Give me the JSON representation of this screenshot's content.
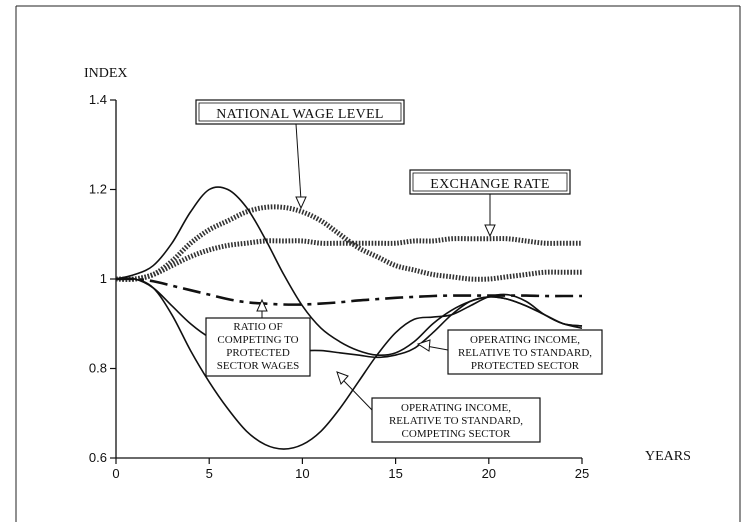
{
  "chart_data": {
    "type": "line",
    "title": "",
    "ylabel": "INDEX",
    "xlabel": "YEARS",
    "xlim": [
      0,
      25
    ],
    "ylim": [
      0.6,
      1.4
    ],
    "xticks": [
      0,
      5,
      10,
      15,
      20,
      25
    ],
    "yticks": [
      0.6,
      0.8,
      1.0,
      1.2,
      1.4
    ],
    "xtick_labels": [
      "0",
      "5",
      "10",
      "15",
      "20",
      "25"
    ],
    "ytick_labels": [
      "0.6",
      "0.8",
      "1",
      "1.2",
      "1.4"
    ],
    "grid": false,
    "series": [
      {
        "name": "NATIONAL WAGE LEVEL",
        "style": "dotted-thick",
        "x": [
          0,
          1,
          2,
          3,
          4,
          5,
          6,
          7,
          8,
          9,
          10,
          11,
          12,
          13,
          14,
          15,
          16,
          17,
          18,
          19,
          20,
          21,
          22,
          23,
          24,
          25
        ],
        "y": [
          1.0,
          1.0,
          1.01,
          1.04,
          1.08,
          1.11,
          1.13,
          1.15,
          1.16,
          1.16,
          1.15,
          1.13,
          1.1,
          1.07,
          1.05,
          1.03,
          1.02,
          1.01,
          1.005,
          1.0,
          1.0,
          1.005,
          1.01,
          1.015,
          1.015,
          1.015
        ]
      },
      {
        "name": "EXCHANGE RATE",
        "style": "dotted-thick",
        "x": [
          0,
          1,
          2,
          3,
          4,
          5,
          6,
          7,
          8,
          9,
          10,
          11,
          12,
          13,
          14,
          15,
          16,
          17,
          18,
          19,
          20,
          21,
          22,
          23,
          24,
          25
        ],
        "y": [
          1.0,
          1.0,
          1.01,
          1.03,
          1.05,
          1.065,
          1.075,
          1.08,
          1.085,
          1.085,
          1.085,
          1.08,
          1.08,
          1.08,
          1.08,
          1.08,
          1.085,
          1.085,
          1.09,
          1.09,
          1.09,
          1.09,
          1.085,
          1.08,
          1.08,
          1.08
        ]
      },
      {
        "name": "RATIO OF COMPETING TO PROTECTED SECTOR WAGES",
        "style": "dash-dot",
        "x": [
          0,
          1,
          2,
          3,
          4,
          5,
          6,
          7,
          8,
          9,
          10,
          11,
          12,
          13,
          14,
          15,
          16,
          17,
          18,
          19,
          20,
          21,
          22,
          23,
          24,
          25
        ],
        "y": [
          1.0,
          1.0,
          0.995,
          0.985,
          0.975,
          0.965,
          0.955,
          0.948,
          0.945,
          0.943,
          0.943,
          0.945,
          0.948,
          0.952,
          0.955,
          0.958,
          0.96,
          0.962,
          0.963,
          0.963,
          0.963,
          0.963,
          0.963,
          0.962,
          0.962,
          0.962
        ]
      },
      {
        "name": "OPERATING INCOME, RELATIVE TO STANDARD, PROTECTED SECTOR",
        "style": "solid",
        "x": [
          0,
          1,
          2,
          3,
          4,
          5,
          6,
          7,
          8,
          9,
          10,
          11,
          12,
          13,
          14,
          15,
          16,
          17,
          18,
          19,
          20,
          21,
          22,
          23,
          24,
          25
        ],
        "y": [
          1.0,
          1.0,
          0.98,
          0.94,
          0.9,
          0.87,
          0.855,
          0.85,
          0.845,
          0.84,
          0.84,
          0.84,
          0.835,
          0.83,
          0.825,
          0.83,
          0.845,
          0.88,
          0.92,
          0.95,
          0.96,
          0.955,
          0.94,
          0.92,
          0.9,
          0.89
        ]
      },
      {
        "name": "OPERATING INCOME, RELATIVE TO STANDARD, COMPETING SECTOR",
        "style": "solid",
        "x": [
          0,
          1,
          2,
          3,
          4,
          5,
          6,
          7,
          8,
          9,
          10,
          11,
          12,
          13,
          14,
          15,
          16,
          17,
          18,
          19,
          20,
          21,
          22,
          23,
          24,
          25
        ],
        "y": [
          1.0,
          1.0,
          0.98,
          0.92,
          0.84,
          0.77,
          0.71,
          0.66,
          0.63,
          0.62,
          0.63,
          0.66,
          0.71,
          0.77,
          0.83,
          0.88,
          0.91,
          0.915,
          0.92,
          0.94,
          0.96,
          0.965,
          0.95,
          0.92,
          0.9,
          0.895
        ]
      },
      {
        "name": "",
        "style": "solid",
        "x": [
          0,
          1,
          2,
          3,
          4,
          5,
          6,
          7,
          8,
          9,
          10,
          11,
          12,
          13,
          14,
          15,
          16,
          17,
          18,
          19,
          20,
          21,
          22,
          23,
          24,
          25
        ],
        "y": [
          1.0,
          1.01,
          1.03,
          1.08,
          1.15,
          1.2,
          1.2,
          1.16,
          1.09,
          1.01,
          0.94,
          0.89,
          0.86,
          0.84,
          0.83,
          0.835,
          0.86,
          0.9,
          0.93,
          0.95,
          0.96,
          0.955,
          0.94,
          0.92,
          0.9,
          0.895
        ]
      }
    ],
    "annotations": {
      "national_wage_level": "NATIONAL WAGE LEVEL",
      "exchange_rate": "EXCHANGE RATE",
      "ratio": [
        "RATIO OF",
        "COMPETING TO",
        "PROTECTED",
        "SECTOR WAGES"
      ],
      "protected_income": [
        "OPERATING INCOME,",
        "RELATIVE TO STANDARD,",
        "PROTECTED SECTOR"
      ],
      "competing_income": [
        "OPERATING INCOME,",
        "RELATIVE TO STANDARD,",
        "COMPETING SECTOR"
      ]
    }
  }
}
